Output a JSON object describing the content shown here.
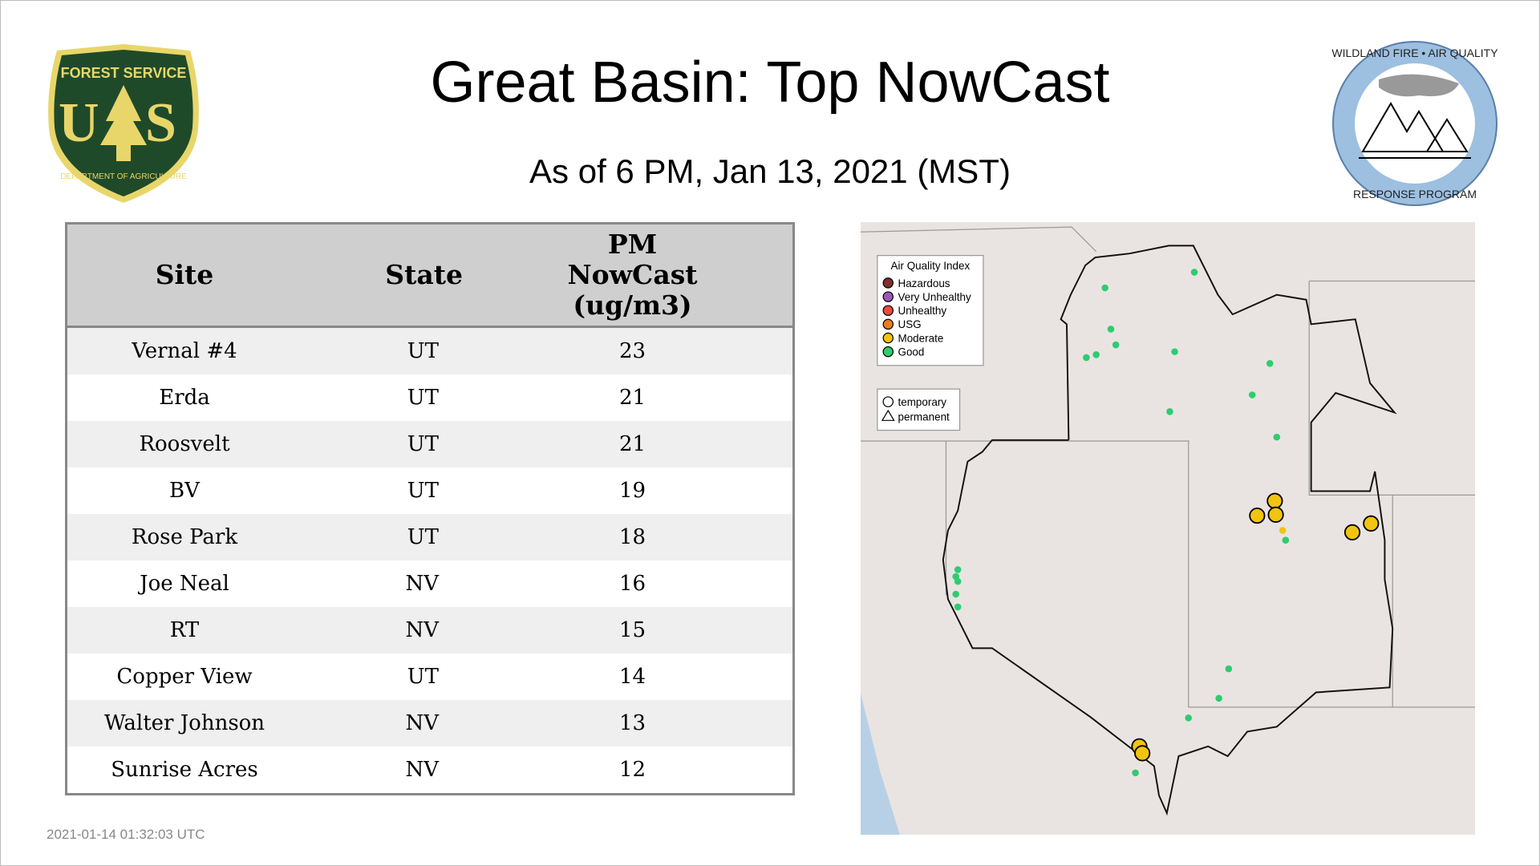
{
  "header": {
    "title": "Great Basin: Top NowCast",
    "subtitle": "As of  6 PM, Jan 13, 2021 (MST)"
  },
  "logos": {
    "left": {
      "text_top": "FOREST SERVICE",
      "text_letters": "U S",
      "text_bottom": "DEPARTMENT OF AGRICULTURE",
      "colors": {
        "green": "#1f4a2a",
        "yellow": "#e8d66a"
      }
    },
    "right": {
      "text_top": "WILDLAND FIRE • AIR QUALITY",
      "text_bottom": "RESPONSE PROGRAM",
      "colors": {
        "ring": "#9dbfe0"
      }
    }
  },
  "table": {
    "columns": [
      "Site",
      "State",
      "PM NowCast (ug/m3)"
    ],
    "column_lines": [
      [
        "Site"
      ],
      [
        "State"
      ],
      [
        "PM",
        "NowCast",
        "(ug/m3)"
      ]
    ],
    "rows": [
      {
        "site": "Vernal #4",
        "state": "UT",
        "value": "23"
      },
      {
        "site": "Erda",
        "state": "UT",
        "value": "21"
      },
      {
        "site": "Roosvelt",
        "state": "UT",
        "value": "21"
      },
      {
        "site": "BV",
        "state": "UT",
        "value": "19"
      },
      {
        "site": "Rose Park",
        "state": "UT",
        "value": "18"
      },
      {
        "site": "Joe Neal",
        "state": "NV",
        "value": "16"
      },
      {
        "site": "RT",
        "state": "NV",
        "value": "15"
      },
      {
        "site": "Copper View",
        "state": "UT",
        "value": "14"
      },
      {
        "site": "Walter Johnson",
        "state": "NV",
        "value": "13"
      },
      {
        "site": "Sunrise Acres",
        "state": "NV",
        "value": "12"
      }
    ]
  },
  "map": {
    "legend_title": "Air Quality Index",
    "legend": [
      {
        "label": "Hazardous",
        "color": "#7e2f2f"
      },
      {
        "label": "Very Unhealthy",
        "color": "#9b59b6"
      },
      {
        "label": "Unhealthy",
        "color": "#e74c3c"
      },
      {
        "label": "USG",
        "color": "#e67e22"
      },
      {
        "label": "Moderate",
        "color": "#f1c40f"
      },
      {
        "label": "Good",
        "color": "#2ecc71"
      }
    ],
    "type_legend": [
      {
        "label": "temporary",
        "icon": "circle-icon"
      },
      {
        "label": "permanent",
        "icon": "triangle-icon"
      }
    ]
  },
  "timestamp": "2021-01-14 01:32:03 UTC"
}
